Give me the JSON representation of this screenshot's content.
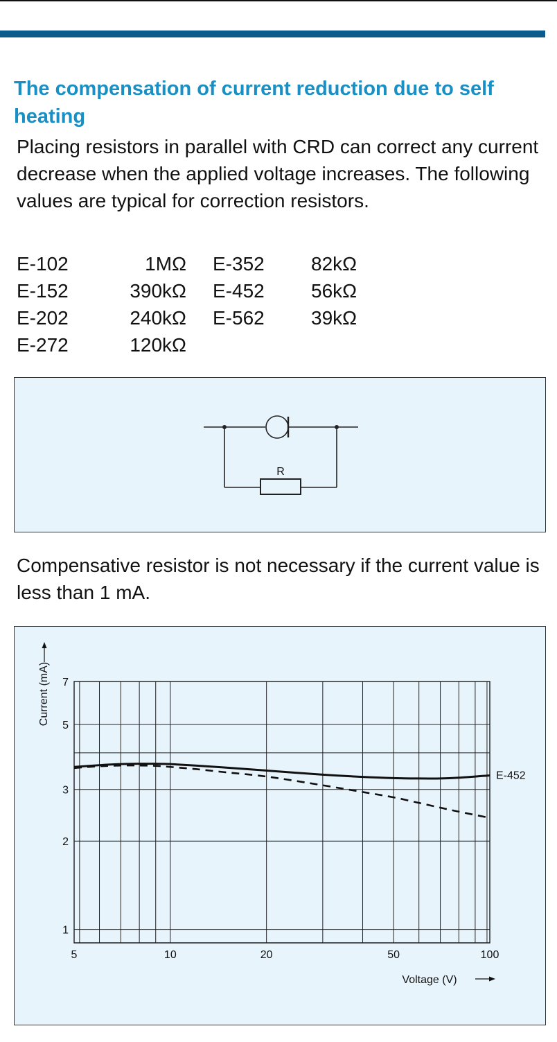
{
  "heading": "The compensation of current reduction due to self heating",
  "intro": "Placing resistors in parallel with CRD can correct any current decrease when the applied voltage increases. The following values are typical for correction resistors.",
  "resistor_table": [
    {
      "model_a": "E-102",
      "value_a": "1MΩ",
      "model_b": "E-352",
      "value_b": "82kΩ"
    },
    {
      "model_a": "E-152",
      "value_a": "390kΩ",
      "model_b": "E-452",
      "value_b": "56kΩ"
    },
    {
      "model_a": "E-202",
      "value_a": "240kΩ",
      "model_b": "E-562",
      "value_b": "39kΩ"
    },
    {
      "model_a": "E-272",
      "value_a": "120kΩ",
      "model_b": "",
      "value_b": ""
    }
  ],
  "circuit": {
    "resistor_label": "R"
  },
  "note": "Compensative resistor is not necessary if the current value is less than 1 mA.",
  "chart_data": {
    "type": "line",
    "title": "",
    "xlabel": "Voltage (V)",
    "ylabel": "Current (mA)",
    "xscale": "log",
    "yscale": "log",
    "xlim": [
      5,
      100
    ],
    "ylim": [
      0.9,
      7
    ],
    "x_ticks": [
      5,
      10,
      20,
      50,
      100
    ],
    "y_ticks": [
      1,
      2,
      3,
      5,
      7
    ],
    "grid": true,
    "series": [
      {
        "name": "E-452",
        "style": "solid",
        "x": [
          5,
          6,
          7,
          8,
          9,
          10,
          12,
          15,
          20,
          30,
          40,
          50,
          60,
          70,
          80,
          100
        ],
        "y": [
          3.58,
          3.63,
          3.66,
          3.67,
          3.67,
          3.66,
          3.62,
          3.56,
          3.48,
          3.37,
          3.31,
          3.28,
          3.27,
          3.27,
          3.29,
          3.35
        ]
      },
      {
        "name": "",
        "style": "dashed",
        "x": [
          5,
          6,
          7,
          8,
          9,
          10,
          12,
          15,
          20,
          30,
          40,
          50,
          60,
          70,
          80,
          100
        ],
        "y": [
          3.55,
          3.6,
          3.62,
          3.62,
          3.61,
          3.58,
          3.52,
          3.43,
          3.32,
          3.1,
          2.94,
          2.82,
          2.7,
          2.6,
          2.52,
          2.4
        ]
      }
    ]
  }
}
